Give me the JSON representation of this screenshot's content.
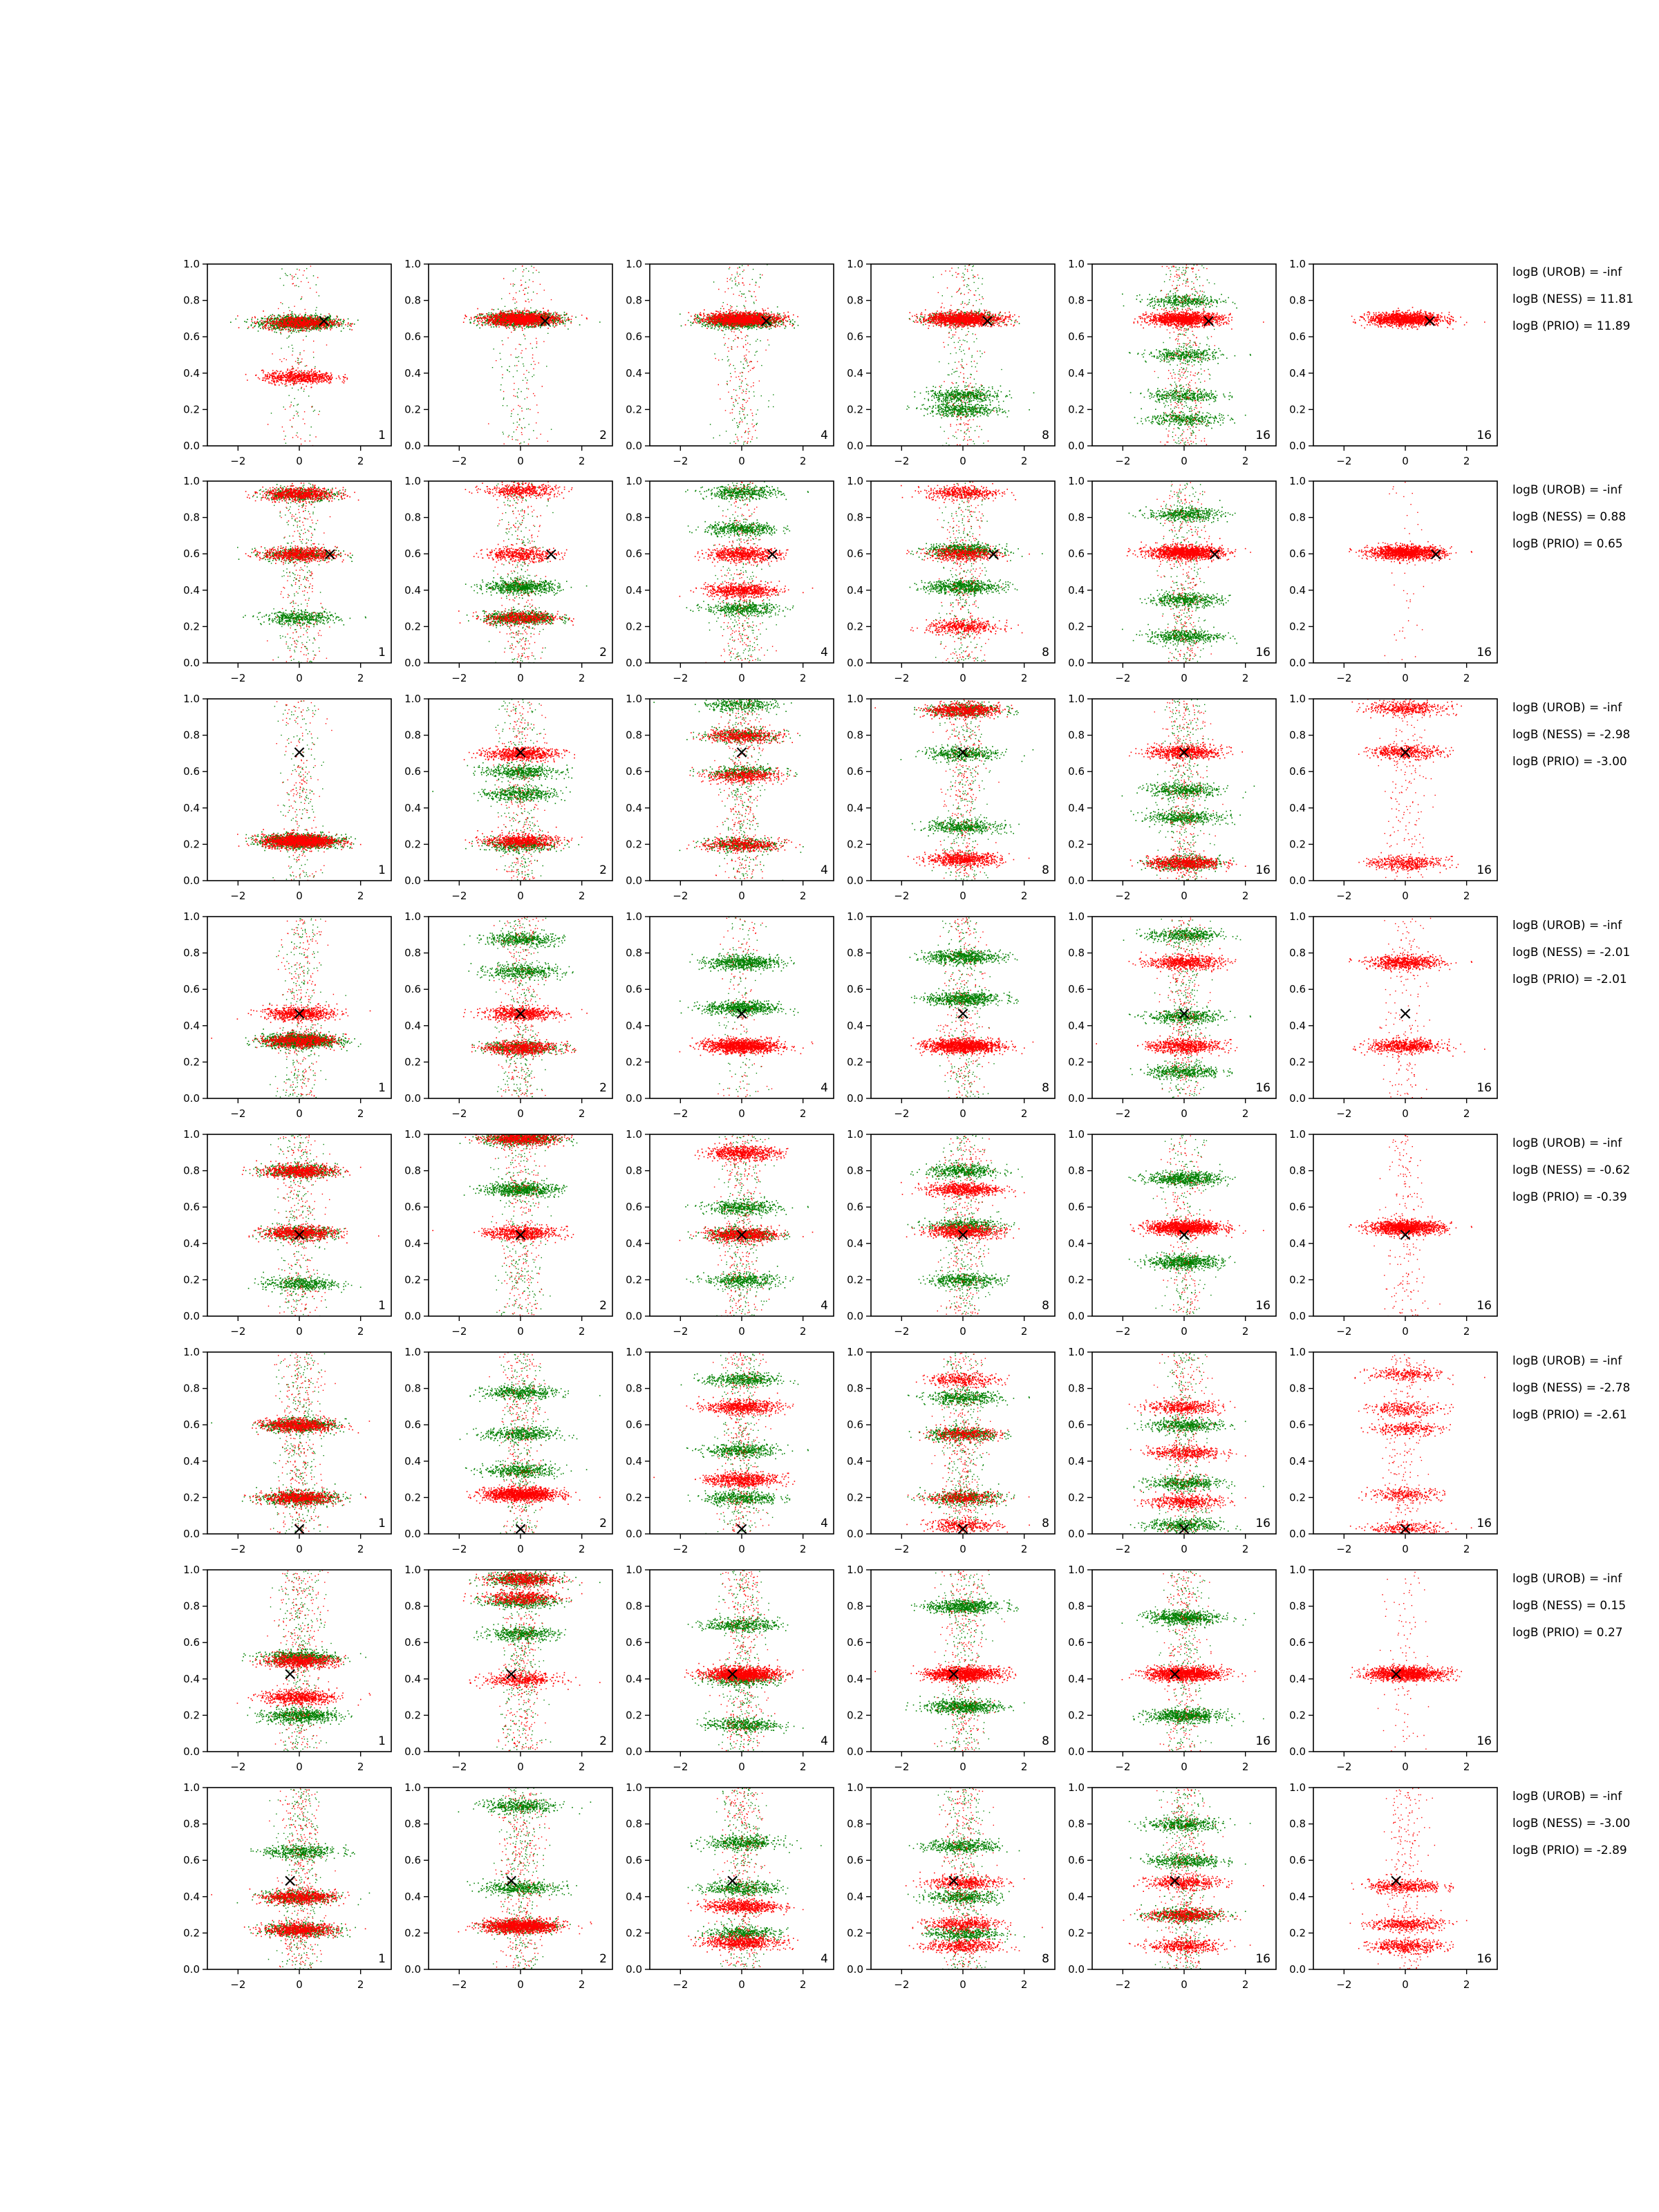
{
  "chart_data": {
    "type": "scatter",
    "rows": 8,
    "cols": 6,
    "xlim": [
      -3,
      3
    ],
    "ylim": [
      0,
      1
    ],
    "xticks": [
      -2,
      0,
      2
    ],
    "yticks": [
      0.0,
      0.2,
      0.4,
      0.6,
      0.8,
      1.0
    ],
    "xtick_labels": [
      "−2",
      "0",
      "2"
    ],
    "ytick_labels": [
      "0.0",
      "0.2",
      "0.4",
      "0.6",
      "0.8",
      "1.0"
    ],
    "grid": false,
    "colors": {
      "green": "#008000",
      "red": "#ff0000",
      "marker": "#000000"
    },
    "marker_symbol": "×",
    "panel_labels": [
      "1",
      "2",
      "4",
      "8",
      "16",
      "16"
    ],
    "rows_data": [
      {
        "target": [
          0.8,
          0.69
        ],
        "logB": [
          "logB (UROB) = -inf",
          "logB (NESS) = 11.81",
          "logB (PRIO) = 11.89"
        ],
        "panels": [
          {
            "green_bands": [
              0.68
            ],
            "red_bands": [
              0.68,
              0.38
            ],
            "spread": 0.18
          },
          {
            "green_bands": [
              0.7
            ],
            "red_bands": [
              0.7
            ],
            "spread": 0.22
          },
          {
            "green_bands": [
              0.69
            ],
            "red_bands": [
              0.7
            ],
            "spread": 0.35
          },
          {
            "green_bands": [
              0.7,
              0.28,
              0.2
            ],
            "red_bands": [
              0.7
            ],
            "spread": 0.35
          },
          {
            "green_bands": [
              0.8,
              0.5,
              0.28,
              0.15
            ],
            "red_bands": [
              0.7
            ],
            "spread": 0.6
          },
          {
            "green_bands": [],
            "red_bands": [
              0.7
            ],
            "spread": 0.0
          }
        ]
      },
      {
        "target": [
          1.0,
          0.6
        ],
        "logB": [
          "logB (UROB) = -inf",
          "logB (NESS) = 0.88",
          "logB (PRIO) = 0.65"
        ],
        "panels": [
          {
            "green_bands": [
              0.93,
              0.6,
              0.25
            ],
            "red_bands": [
              0.93,
              0.6
            ],
            "spread": 0.45
          },
          {
            "green_bands": [
              0.42,
              0.25
            ],
            "red_bands": [
              0.95,
              0.6,
              0.25
            ],
            "spread": 0.5
          },
          {
            "green_bands": [
              0.94,
              0.74,
              0.3
            ],
            "red_bands": [
              0.6,
              0.4
            ],
            "spread": 0.55
          },
          {
            "green_bands": [
              0.62,
              0.42
            ],
            "red_bands": [
              0.94,
              0.6,
              0.2
            ],
            "spread": 0.55
          },
          {
            "green_bands": [
              0.82,
              0.35,
              0.15
            ],
            "red_bands": [
              0.61
            ],
            "spread": 0.55
          },
          {
            "green_bands": [],
            "red_bands": [
              0.61
            ],
            "spread": 0.1
          }
        ]
      },
      {
        "target": [
          0.0,
          0.71
        ],
        "logB": [
          "logB (UROB) = -inf",
          "logB (NESS) = -2.98",
          "logB (PRIO) = -3.00"
        ],
        "panels": [
          {
            "green_bands": [
              0.22
            ],
            "red_bands": [
              0.22
            ],
            "spread": 0.35
          },
          {
            "green_bands": [
              0.6,
              0.48,
              0.2
            ],
            "red_bands": [
              0.7,
              0.22
            ],
            "spread": 0.55
          },
          {
            "green_bands": [
              0.97,
              0.8,
              0.6,
              0.2
            ],
            "red_bands": [
              0.8,
              0.58,
              0.2
            ],
            "spread": 0.6
          },
          {
            "green_bands": [
              0.94,
              0.7,
              0.3
            ],
            "red_bands": [
              0.94,
              0.12
            ],
            "spread": 0.6
          },
          {
            "green_bands": [
              0.5,
              0.35,
              0.1
            ],
            "red_bands": [
              0.71,
              0.1
            ],
            "spread": 0.65
          },
          {
            "green_bands": [],
            "red_bands": [
              0.95,
              0.71,
              0.1
            ],
            "spread": 0.4
          }
        ]
      },
      {
        "target": [
          0.0,
          0.47
        ],
        "logB": [
          "logB (UROB) = -inf",
          "logB (NESS) = -2.01",
          "logB (PRIO) = -2.01"
        ],
        "panels": [
          {
            "green_bands": [
              0.32
            ],
            "red_bands": [
              0.32,
              0.47
            ],
            "spread": 0.5
          },
          {
            "green_bands": [
              0.88,
              0.7,
              0.28
            ],
            "red_bands": [
              0.28,
              0.47
            ],
            "spread": 0.55
          },
          {
            "green_bands": [
              0.75,
              0.5
            ],
            "red_bands": [
              0.29
            ],
            "spread": 0.25
          },
          {
            "green_bands": [
              0.78,
              0.55
            ],
            "red_bands": [
              0.29
            ],
            "spread": 0.5
          },
          {
            "green_bands": [
              0.9,
              0.45,
              0.15
            ],
            "red_bands": [
              0.75,
              0.29
            ],
            "spread": 0.6
          },
          {
            "green_bands": [],
            "red_bands": [
              0.75,
              0.29
            ],
            "spread": 0.35
          }
        ]
      },
      {
        "target": [
          0.0,
          0.45
        ],
        "logB": [
          "logB (UROB) = -inf",
          "logB (NESS) = -0.62",
          "logB (PRIO) = -0.39"
        ],
        "panels": [
          {
            "green_bands": [
              0.8,
              0.46,
              0.18
            ],
            "red_bands": [
              0.8,
              0.46
            ],
            "spread": 0.5
          },
          {
            "green_bands": [
              0.98,
              0.7
            ],
            "red_bands": [
              0.98,
              0.46
            ],
            "spread": 0.55
          },
          {
            "green_bands": [
              0.6,
              0.45,
              0.2
            ],
            "red_bands": [
              0.9,
              0.45
            ],
            "spread": 0.6
          },
          {
            "green_bands": [
              0.8,
              0.5,
              0.2
            ],
            "red_bands": [
              0.7,
              0.47
            ],
            "spread": 0.6
          },
          {
            "green_bands": [
              0.76,
              0.3
            ],
            "red_bands": [
              0.49
            ],
            "spread": 0.4
          },
          {
            "green_bands": [],
            "red_bands": [
              0.49
            ],
            "spread": 0.4
          }
        ]
      },
      {
        "target": [
          0.0,
          0.03
        ],
        "logB": [
          "logB (UROB) = -inf",
          "logB (NESS) = -2.78",
          "logB (PRIO) = -2.61"
        ],
        "panels": [
          {
            "green_bands": [
              0.2,
              0.6
            ],
            "red_bands": [
              0.2,
              0.6
            ],
            "spread": 0.6
          },
          {
            "green_bands": [
              0.78,
              0.55,
              0.35
            ],
            "red_bands": [
              0.22
            ],
            "spread": 0.6
          },
          {
            "green_bands": [
              0.85,
              0.46,
              0.2
            ],
            "red_bands": [
              0.7,
              0.3
            ],
            "spread": 0.65
          },
          {
            "green_bands": [
              0.75,
              0.55,
              0.2
            ],
            "red_bands": [
              0.85,
              0.55,
              0.2,
              0.05
            ],
            "spread": 0.65
          },
          {
            "green_bands": [
              0.6,
              0.28,
              0.05
            ],
            "red_bands": [
              0.7,
              0.45,
              0.18
            ],
            "spread": 0.6
          },
          {
            "green_bands": [],
            "red_bands": [
              0.88,
              0.69,
              0.58,
              0.22,
              0.03
            ],
            "spread": 0.45
          }
        ]
      },
      {
        "target": [
          -0.3,
          0.43
        ],
        "logB": [
          "logB (UROB) = -inf",
          "logB (NESS) = 0.15",
          "logB (PRIO) = 0.27"
        ],
        "panels": [
          {
            "green_bands": [
              0.52,
              0.2
            ],
            "red_bands": [
              0.5,
              0.3
            ],
            "spread": 0.65
          },
          {
            "green_bands": [
              0.95,
              0.83,
              0.65
            ],
            "red_bands": [
              0.95,
              0.85,
              0.4
            ],
            "spread": 0.65
          },
          {
            "green_bands": [
              0.7,
              0.4,
              0.15
            ],
            "red_bands": [
              0.43
            ],
            "spread": 0.65
          },
          {
            "green_bands": [
              0.8,
              0.25
            ],
            "red_bands": [
              0.43
            ],
            "spread": 0.6
          },
          {
            "green_bands": [
              0.74,
              0.2
            ],
            "red_bands": [
              0.43
            ],
            "spread": 0.55
          },
          {
            "green_bands": [],
            "red_bands": [
              0.43
            ],
            "spread": 0.2
          }
        ]
      },
      {
        "target": [
          -0.3,
          0.49
        ],
        "logB": [
          "logB (UROB) = -inf",
          "logB (NESS) = -3.00",
          "logB (PRIO) = -2.89"
        ],
        "panels": [
          {
            "green_bands": [
              0.65,
              0.4,
              0.22
            ],
            "red_bands": [
              0.4,
              0.22
            ],
            "spread": 0.65
          },
          {
            "green_bands": [
              0.9,
              0.45,
              0.24
            ],
            "red_bands": [
              0.24
            ],
            "spread": 0.65
          },
          {
            "green_bands": [
              0.7,
              0.45,
              0.2
            ],
            "red_bands": [
              0.35,
              0.15
            ],
            "spread": 0.65
          },
          {
            "green_bands": [
              0.68,
              0.4,
              0.2
            ],
            "red_bands": [
              0.48,
              0.25,
              0.13
            ],
            "spread": 0.65
          },
          {
            "green_bands": [
              0.8,
              0.6,
              0.3
            ],
            "red_bands": [
              0.48,
              0.3,
              0.13
            ],
            "spread": 0.65
          },
          {
            "green_bands": [],
            "red_bands": [
              0.46,
              0.25,
              0.13
            ],
            "spread": 0.5
          }
        ]
      }
    ]
  }
}
